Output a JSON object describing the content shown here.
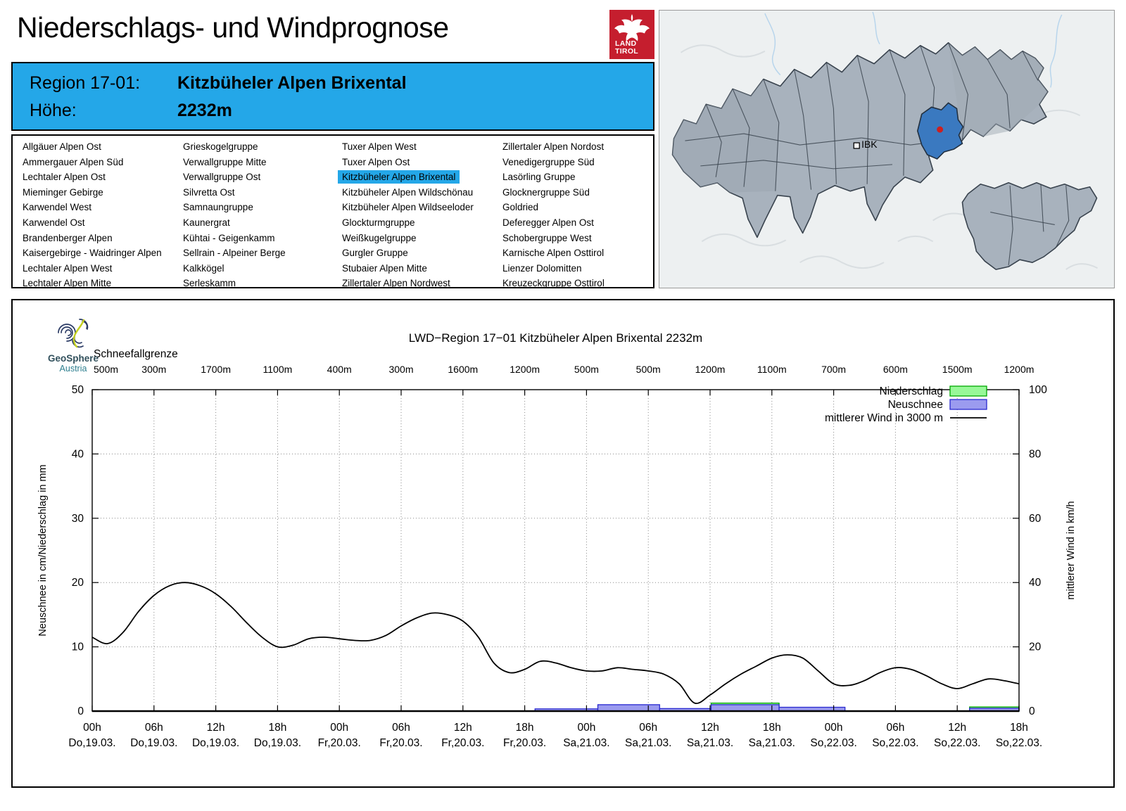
{
  "page": {
    "title": "Niederschlags- und Windprognose"
  },
  "brand": {
    "land_logo_line1": "LAND",
    "land_logo_line2": "TIROL",
    "red": "#c51e2e"
  },
  "region_header": {
    "region_label": "Region 17-01:",
    "region_name": "Kitzbüheler Alpen Brixental",
    "altitude_label": "Höhe:",
    "altitude_value": "2232m",
    "bg": "#24a7e8"
  },
  "region_list": {
    "selected": "Kitzbüheler Alpen Brixental",
    "highlight_color": "#24a7e8",
    "columns": [
      [
        "Allgäuer Alpen Ost",
        "Ammergauer Alpen Süd",
        "Lechtaler Alpen Ost",
        "Mieminger Gebirge",
        "Karwendel West",
        "Karwendel Ost",
        "Brandenberger Alpen",
        "Kaisergebirge - Waidringer Alpen",
        "Lechtaler Alpen West",
        "Lechtaler Alpen Mitte"
      ],
      [
        "Grieskogelgruppe",
        "Verwallgruppe Mitte",
        "Verwallgruppe Ost",
        "Silvretta Ost",
        "Samnaungruppe",
        "Kaunergrat",
        "Kühtai - Geigenkamm",
        "Sellrain - Alpeiner Berge",
        "Kalkkögel",
        "Serleskamm"
      ],
      [
        "Tuxer Alpen West",
        "Tuxer Alpen Ost",
        "Kitzbüheler Alpen Brixental",
        "Kitzbüheler Alpen Wildschönau",
        "Kitzbüheler Alpen Wildseeloder",
        "Glockturmgruppe",
        "Weißkugelgruppe",
        "Gurgler Gruppe",
        "Stubaier Alpen Mitte",
        "Zillertaler Alpen Nordwest"
      ],
      [
        "Zillertaler Alpen Nordost",
        "Venedigergruppe Süd",
        "Lasörling Gruppe",
        "Glocknergruppe Süd",
        "Goldried",
        "Deferegger Alpen Ost",
        "Schobergruppe West",
        "Karnische Alpen Osttirol",
        "Lienzer Dolomitten",
        "Kreuzeckgruppe Osttirol"
      ]
    ]
  },
  "map": {
    "city_label": "IBK",
    "highlight_color": "#3a79c0",
    "dot_color": "#cc2020",
    "land_fill": "#a8b2bd",
    "border_color": "#39434e"
  },
  "geosphere": {
    "name": "GeoSphere",
    "country": "Austria"
  },
  "chart_data": {
    "type": "bar+line",
    "title": "LWD−Region 17−01 Kitzbüheler Alpen Brixental 2232m",
    "snowline": {
      "label": "Schneefallgrenze",
      "values": [
        "500m",
        "300m",
        "1700m",
        "1100m",
        "400m",
        "300m",
        "1600m",
        "1200m",
        "500m",
        "500m",
        "1200m",
        "1100m",
        "700m",
        "600m",
        "1500m",
        "1200m"
      ]
    },
    "x_ticks": [
      {
        "time": "00h",
        "date": "Do,19.03."
      },
      {
        "time": "06h",
        "date": "Do,19.03."
      },
      {
        "time": "12h",
        "date": "Do,19.03."
      },
      {
        "time": "18h",
        "date": "Do,19.03."
      },
      {
        "time": "00h",
        "date": "Fr,20.03."
      },
      {
        "time": "06h",
        "date": "Fr,20.03."
      },
      {
        "time": "12h",
        "date": "Fr,20.03."
      },
      {
        "time": "18h",
        "date": "Fr,20.03."
      },
      {
        "time": "00h",
        "date": "Sa,21.03."
      },
      {
        "time": "06h",
        "date": "Sa,21.03."
      },
      {
        "time": "12h",
        "date": "Sa,21.03."
      },
      {
        "time": "18h",
        "date": "Sa,21.03."
      },
      {
        "time": "00h",
        "date": "So,22.03."
      },
      {
        "time": "06h",
        "date": "So,22.03."
      },
      {
        "time": "12h",
        "date": "So,22.03."
      },
      {
        "time": "18h",
        "date": "So,22.03."
      }
    ],
    "hours_range": [
      0,
      90
    ],
    "left_axis": {
      "label": "Neuschnee in cm/Niederschlag in mm",
      "min": 0,
      "max": 50,
      "ticks": [
        0,
        10,
        20,
        30,
        40,
        50
      ]
    },
    "right_axis": {
      "label": "mittlerer Wind in km/h",
      "min": 0,
      "max": 100,
      "ticks": [
        0,
        20,
        40,
        60,
        80,
        100
      ]
    },
    "legend": [
      {
        "label": "Niederschlag",
        "type": "box",
        "fill": "#98f898",
        "stroke": "#00a800"
      },
      {
        "label": "Neuschnee",
        "type": "box",
        "fill": "#9b9bef",
        "stroke": "#2a2ad0"
      },
      {
        "label": "mittlerer Wind in 3000 m",
        "type": "line",
        "stroke": "#000000"
      }
    ],
    "wind_series": {
      "name": "mittlerer Wind in 3000 m",
      "unit": "km/h",
      "hours": [
        0,
        1.5,
        3,
        4.5,
        6,
        7.5,
        9,
        10.5,
        12,
        13.5,
        15,
        16.5,
        18,
        19.5,
        21,
        22.5,
        24,
        25.5,
        27,
        28.5,
        30,
        31.5,
        33,
        34.5,
        36,
        37.5,
        39,
        40.5,
        42,
        43.5,
        45,
        46.5,
        48,
        49.5,
        51,
        52.5,
        54,
        55.5,
        57,
        58.5,
        60,
        61.5,
        63,
        64.5,
        66,
        67.5,
        69,
        70.5,
        72,
        73.5,
        75,
        76.5,
        78,
        79.5,
        81,
        82.5,
        84,
        85.5,
        87,
        88.5,
        90
      ],
      "values": [
        23,
        21,
        24.5,
        31,
        36,
        39,
        40,
        39,
        36.5,
        32.5,
        27.5,
        23,
        20,
        20.5,
        22.5,
        23,
        22.5,
        22,
        22,
        23.5,
        26.5,
        29,
        30.5,
        30,
        28,
        23,
        15,
        12,
        13,
        15.5,
        15,
        13.5,
        12.5,
        12.5,
        13.5,
        13,
        12.5,
        11.5,
        8.5,
        2.5,
        5,
        8.5,
        11.5,
        14,
        16.5,
        17.5,
        16.5,
        12.5,
        8.5,
        8,
        9.5,
        12,
        13.5,
        13,
        11,
        8.5,
        7,
        8.5,
        10,
        9.5,
        8.5
      ]
    },
    "snow_bars": [
      {
        "from_h": 43.0,
        "to_h": 49.1,
        "neuschnee_cm": 0.35,
        "niederschlag_mm": null
      },
      {
        "from_h": 49.1,
        "to_h": 55.1,
        "neuschnee_cm": 1.0,
        "niederschlag_mm": null
      },
      {
        "from_h": 55.1,
        "to_h": 60.1,
        "neuschnee_cm": 0.4,
        "niederschlag_mm": null
      },
      {
        "from_h": 60.1,
        "to_h": 66.7,
        "neuschnee_cm": 1.0,
        "niederschlag_mm": 1.25
      },
      {
        "from_h": 66.7,
        "to_h": 73.1,
        "neuschnee_cm": 0.6,
        "niederschlag_mm": null
      },
      {
        "from_h": 85.2,
        "to_h": 90.0,
        "neuschnee_cm": 0.45,
        "niederschlag_mm": 0.65
      }
    ],
    "grid": true,
    "legend_position": "top-right"
  }
}
